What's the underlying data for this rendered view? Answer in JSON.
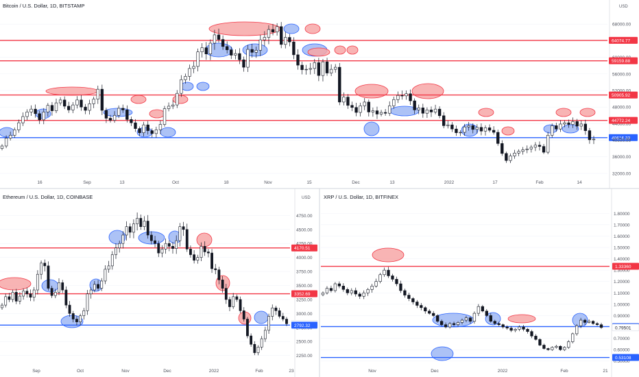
{
  "chart_data": [
    {
      "type": "candlestick",
      "title": "Bitcoin / U.S. Dollar, 1D, BITSTAMP",
      "currency": "USD",
      "x_ticks": [
        "16",
        "Sep",
        "13",
        "Oct",
        "18",
        "Nov",
        "15",
        "Dec",
        "13",
        "2022",
        "17",
        "Feb",
        "14"
      ],
      "y_ticks": [
        "68000.00",
        "64000.00",
        "60000.00",
        "56000.00",
        "52000.00",
        "48000.00",
        "44000.00",
        "40000.00",
        "36000.00",
        "32000.00"
      ],
      "ylim": [
        30500,
        71500
      ],
      "levels": [
        {
          "value": 64074.77,
          "label": "64074.77",
          "kind": "resistance",
          "color": "#f23645"
        },
        {
          "value": 59159.88,
          "label": "59159.88",
          "kind": "resistance",
          "color": "#f23645"
        },
        {
          "value": 50905.92,
          "label": "50905.92",
          "kind": "resistance",
          "color": "#f23645"
        },
        {
          "value": 44772.24,
          "label": "44772.24",
          "kind": "resistance",
          "color": "#f23645"
        },
        {
          "value": 40616.33,
          "label": "40616.33",
          "kind": "support",
          "color": "#2962ff"
        }
      ],
      "last_price": "40254.98",
      "closes": [
        38600,
        40500,
        41200,
        42500,
        44200,
        45700,
        46800,
        47500,
        46400,
        44900,
        46800,
        48400,
        47100,
        49000,
        49700,
        48200,
        47300,
        48500,
        49700,
        48000,
        47200,
        48800,
        49900,
        52300,
        47200,
        45300,
        44800,
        46000,
        47700,
        47300,
        45000,
        44200,
        42800,
        41800,
        43700,
        42300,
        41600,
        42500,
        43800,
        47600,
        48200,
        48500,
        51300,
        54600,
        55400,
        57300,
        57800,
        61300,
        62300,
        60800,
        63400,
        65400,
        64300,
        62600,
        61800,
        60500,
        60900,
        59400,
        57600,
        61900,
        61200,
        61700,
        64200,
        64800,
        66700,
        66100,
        67400,
        63100,
        64800,
        63700,
        60600,
        58100,
        57000,
        57100,
        57300,
        58700,
        55600,
        58900,
        56200,
        57100,
        57600,
        49200,
        50400,
        48400,
        47900,
        46700,
        48300,
        49200,
        46800,
        47100,
        46300,
        46700,
        46500,
        48300,
        49800,
        50800,
        50700,
        51200,
        49500,
        47300,
        47800,
        46500,
        47300,
        46800,
        47500,
        45900,
        43500,
        43700,
        42700,
        41800,
        41900,
        43200,
        43500,
        42600,
        43100,
        42200,
        43000,
        42400,
        41900,
        39200,
        36800,
        35100,
        36200,
        36900,
        37300,
        37700,
        37900,
        38300,
        38800,
        38500,
        37100,
        41200,
        43500,
        42700,
        43900,
        44200,
        43800,
        44500,
        43400,
        43900,
        42300,
        40100,
        40254.98
      ],
      "highlight_zones": "shaded ovals (red above price, blue below) mark touches of the horizontal levels"
    },
    {
      "type": "candlestick",
      "title": "Ethereum / U.S. Dollar, 1D, COINBASE",
      "currency": "USD",
      "x_ticks": [
        "Sep",
        "Oct",
        "Nov",
        "Dec",
        "2022",
        "Feb",
        "23"
      ],
      "y_ticks": [
        "4750.00",
        "4500.00",
        "4250.00",
        "4000.00",
        "3750.00",
        "3500.00",
        "3250.00",
        "3000.00",
        "2750.00",
        "2500.00",
        "2250.00"
      ],
      "ylim": [
        2050,
        4950
      ],
      "levels": [
        {
          "value": 4170.51,
          "label": "4170.51",
          "kind": "resistance",
          "color": "#f23645"
        },
        {
          "value": 3352.69,
          "label": "3352.69",
          "kind": "resistance",
          "color": "#f23645"
        },
        {
          "value": 2817.1,
          "label": "2817.10",
          "kind": "last",
          "color": "#ffffff"
        },
        {
          "value": 2792.32,
          "label": "2792.32",
          "kind": "support",
          "color": "#2962ff"
        }
      ],
      "closes": [
        3150,
        3300,
        3250,
        3380,
        3220,
        3310,
        3400,
        3350,
        3290,
        3420,
        3700,
        3900,
        3850,
        3450,
        3320,
        3380,
        3550,
        3420,
        3150,
        3000,
        2900,
        2850,
        2960,
        3050,
        3350,
        3420,
        3520,
        3450,
        3580,
        3790,
        3850,
        4050,
        4170,
        4250,
        4400,
        4550,
        4450,
        4600,
        4700,
        4550,
        4650,
        4400,
        4300,
        4250,
        4080,
        4150,
        4250,
        4200,
        4160,
        4300,
        4550,
        4500,
        4150,
        4050,
        3950,
        4000,
        4200,
        4100,
        4080,
        3800,
        3780,
        3600,
        3450,
        3250,
        3120,
        3300,
        3250,
        3050,
        2900,
        2600,
        2450,
        2300,
        2400,
        2550,
        2700,
        2950,
        3100,
        3050,
        2950,
        2900,
        2817.1
      ],
      "highlight_zones": "shaded ovals mark level touches"
    },
    {
      "type": "candlestick",
      "title": "XRP / U.S. Dollar, 1D, BITFINEX",
      "currency": "USD",
      "x_ticks": [
        "Nov",
        "Dec",
        "2022",
        "Feb",
        "21"
      ],
      "y_ticks": [
        "1.80000",
        "1.70000",
        "1.60000",
        "1.50000",
        "1.40000",
        "1.30000",
        "1.20000",
        "1.10000",
        "1.00000",
        "0.90000",
        "0.80000",
        "0.70000",
        "0.60000",
        "0.50000"
      ],
      "ylim": [
        0.45,
        1.88
      ],
      "levels": [
        {
          "value": 1.3336,
          "label": "1.33360",
          "kind": "resistance",
          "color": "#f23645"
        },
        {
          "value": 0.8033,
          "label": "0.80330",
          "kind": "support",
          "color": "#2962ff"
        },
        {
          "value": 0.79501,
          "label": "0.79501",
          "kind": "last",
          "color": "#ffffff"
        },
        {
          "value": 0.53108,
          "label": "0.53108",
          "kind": "support",
          "color": "#2962ff"
        }
      ],
      "closes": [
        1.1,
        1.14,
        1.12,
        1.18,
        1.16,
        1.13,
        1.1,
        1.12,
        1.09,
        1.07,
        1.1,
        1.13,
        1.16,
        1.2,
        1.26,
        1.3,
        1.25,
        1.22,
        1.18,
        1.12,
        1.08,
        1.05,
        1.02,
        0.99,
        0.97,
        0.94,
        0.92,
        0.9,
        0.85,
        0.82,
        0.8,
        0.83,
        0.82,
        0.84,
        0.86,
        0.88,
        0.85,
        0.92,
        0.98,
        0.94,
        0.9,
        0.85,
        0.83,
        0.82,
        0.8,
        0.79,
        0.77,
        0.78,
        0.8,
        0.78,
        0.76,
        0.72,
        0.69,
        0.64,
        0.61,
        0.6,
        0.62,
        0.63,
        0.6,
        0.62,
        0.67,
        0.74,
        0.81,
        0.86,
        0.84,
        0.85,
        0.83,
        0.82,
        0.79501
      ],
      "highlight_zones": "shaded ovals mark level touches"
    }
  ],
  "colors": {
    "resistance": "#f23645",
    "support": "#2962ff",
    "candle": "#131722",
    "red_oval_fill": "#f7a7a7",
    "blue_oval_fill": "#9db7f5"
  }
}
